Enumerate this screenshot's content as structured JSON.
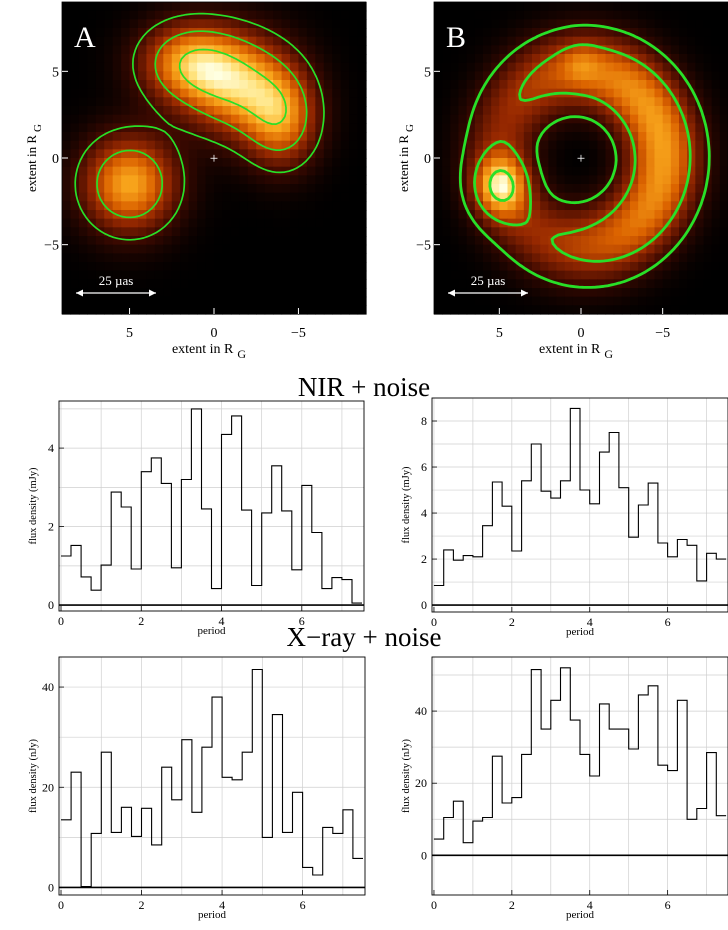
{
  "sections": {
    "nir_title": "NIR + noise",
    "xray_title": "X−ray + noise"
  },
  "colors": {
    "contour": "#28e028",
    "hist_line": "#000000",
    "grid": "#cfcfcf"
  },
  "chart_data": [
    {
      "type": "heatmap",
      "panel_label": "A",
      "xlabel": "extent in R",
      "xlabel_sub": "G",
      "ylabel": "extent in R",
      "ylabel_sub": "G",
      "xlim": [
        9,
        -9
      ],
      "ylim": [
        -9,
        9
      ],
      "x_ticks": [
        "5",
        "0",
        "−5"
      ],
      "x_tick_values": [
        5,
        0,
        -5
      ],
      "y_ticks": [
        "5",
        "0",
        "−5"
      ],
      "y_tick_values": [
        5,
        0,
        -5
      ],
      "scale_bar_label": "25 µas",
      "center_marker": "+",
      "colormap": "heat",
      "sources": [
        {
          "x": 5,
          "y": -1.5,
          "sx": 1.9,
          "sy": 1.9,
          "peak": 0.97
        },
        {
          "x": 1.5,
          "y": 5.5,
          "sx": 2.0,
          "sy": 1.6,
          "peak": 0.85
        },
        {
          "x": -1.5,
          "y": 4.2,
          "sx": 2.2,
          "sy": 2.0,
          "peak": 0.92
        },
        {
          "x": -4.0,
          "y": 2.2,
          "sx": 1.5,
          "sy": 1.9,
          "peak": 0.75
        }
      ],
      "contour_levels": [
        0.18,
        0.45,
        0.8
      ],
      "contour_style": "thin"
    },
    {
      "type": "heatmap",
      "panel_label": "B",
      "xlabel": "extent in R",
      "xlabel_sub": "G",
      "ylabel": "extent in R",
      "ylabel_sub": "G",
      "xlim": [
        9,
        -9
      ],
      "ylim": [
        -9,
        9
      ],
      "x_ticks": [
        "5",
        "0",
        "−5"
      ],
      "x_tick_values": [
        5,
        0,
        -5
      ],
      "y_ticks": [
        "5",
        "0",
        "−5"
      ],
      "y_tick_values": [
        5,
        0,
        -5
      ],
      "scale_bar_label": "25 µas",
      "center_marker": "+",
      "colormap": "heat",
      "ring": {
        "radius": 5.0,
        "width": 1.6,
        "level": 0.55,
        "modulation": [
          [
            0.3,
            3.14
          ],
          [
            0.16,
            1.57
          ],
          [
            -0.1,
            0.8
          ]
        ]
      },
      "sources": [
        {
          "x": 4.9,
          "y": -1.6,
          "sx": 1.1,
          "sy": 1.2,
          "peak": 0.7
        },
        {
          "x": 0.0,
          "y": 5.4,
          "sx": 0.8,
          "sy": 0.8,
          "peak": 0.15
        }
      ],
      "contour_levels": [
        0.15,
        0.42,
        0.85
      ],
      "contour_style": "thick"
    },
    {
      "type": "line",
      "step": true,
      "section": "NIR + noise",
      "xlabel": "period",
      "ylabel": "flux density (mJy)",
      "xlim": [
        -0.05,
        7.55
      ],
      "ylim": [
        -0.15,
        5.2
      ],
      "x_ticks": [
        0,
        2,
        4,
        6
      ],
      "y_ticks": [
        0,
        2,
        4
      ],
      "x_step": 0.25,
      "values": [
        1.25,
        1.52,
        0.72,
        0.38,
        1.02,
        2.88,
        2.5,
        0.92,
        3.4,
        3.75,
        3.1,
        0.95,
        3.2,
        5.0,
        2.45,
        0.42,
        4.35,
        4.82,
        2.42,
        0.5,
        2.35,
        3.55,
        2.4,
        0.9,
        3.05,
        1.85,
        0.42,
        0.7,
        0.65,
        0.05
      ]
    },
    {
      "type": "line",
      "step": true,
      "section": "NIR + noise",
      "xlabel": "period",
      "ylabel": "flux density (mJy)",
      "xlim": [
        -0.05,
        7.55
      ],
      "ylim": [
        -0.3,
        9.0
      ],
      "x_ticks": [
        0,
        2,
        4,
        6
      ],
      "y_ticks": [
        0,
        2,
        4,
        6,
        8
      ],
      "x_step": 0.25,
      "values": [
        0.85,
        2.4,
        1.95,
        2.15,
        2.1,
        3.45,
        5.35,
        4.3,
        2.35,
        5.4,
        7.0,
        4.95,
        4.65,
        5.4,
        8.55,
        5.0,
        4.4,
        6.65,
        7.5,
        5.1,
        2.95,
        4.35,
        5.3,
        2.7,
        2.1,
        2.85,
        2.6,
        1.05,
        2.25,
        2.0
      ]
    },
    {
      "type": "line",
      "step": true,
      "section": "X−ray + noise",
      "xlabel": "period",
      "ylabel": "flux density (nJy)",
      "xlim": [
        -0.05,
        7.55
      ],
      "ylim": [
        -1.5,
        46
      ],
      "x_ticks": [
        0,
        2,
        4,
        6
      ],
      "y_ticks": [
        0,
        20,
        40
      ],
      "x_step": 0.25,
      "values": [
        13.5,
        23.0,
        0.2,
        10.8,
        27.0,
        11.0,
        16.0,
        10.2,
        15.8,
        8.5,
        24.0,
        17.5,
        29.5,
        15.0,
        28.0,
        38.0,
        22.0,
        21.5,
        27.0,
        43.5,
        10.0,
        34.5,
        11.0,
        19.0,
        4.0,
        2.5,
        12.0,
        10.8,
        15.5,
        5.8
      ]
    },
    {
      "type": "line",
      "step": true,
      "section": "X−ray + noise",
      "xlabel": "period",
      "ylabel": "flux density (nJy)",
      "xlim": [
        -0.05,
        7.55
      ],
      "ylim": [
        -11,
        55
      ],
      "x_ticks": [
        0,
        2,
        4,
        6
      ],
      "y_ticks": [
        0,
        20,
        40
      ],
      "x_step": 0.25,
      "values": [
        4.5,
        10.5,
        15.0,
        3.5,
        9.5,
        10.5,
        27.5,
        14.5,
        16.0,
        28.0,
        51.5,
        35.0,
        43.0,
        52.0,
        37.5,
        28.0,
        22.0,
        42.0,
        35.0,
        35.0,
        29.5,
        44.5,
        47.0,
        25.0,
        23.5,
        43.0,
        10.0,
        13.0,
        28.5,
        11.0
      ]
    }
  ]
}
